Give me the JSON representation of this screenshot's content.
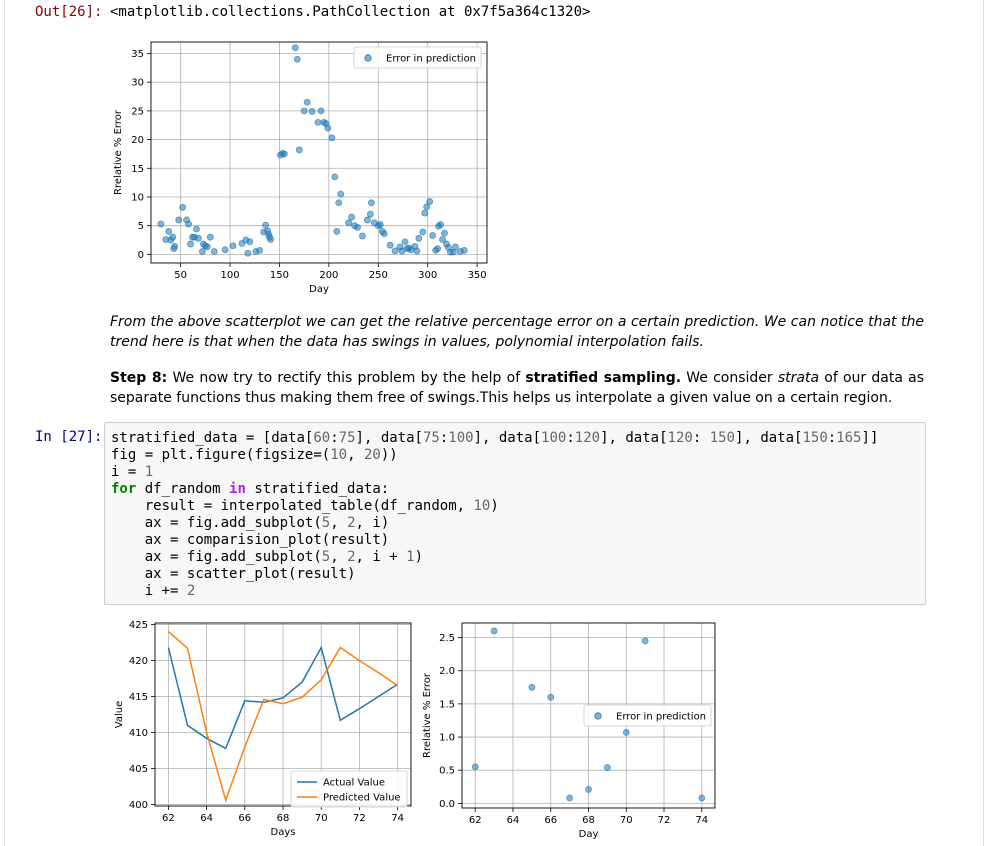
{
  "out_prompt": "Out[26]:",
  "out_text": "<matplotlib.collections.PathCollection at 0x7f5a364c1320>",
  "markdown": {
    "p1": "From the above scatterplot we can get the relative percentage error on a certain prediction. We can notice that the trend here is that when the data has swings in values, polynomial interpolation fails.",
    "step_label": "Step 8:",
    "step_text1": " We now try to rectify this problem by the help of ",
    "step_bold": "stratified sampling.",
    "step_text2": " We consider ",
    "step_italic": "strata",
    "step_text3": " of our data as separate functions thus making them free of swings.This helps us interpolate a given value on a certain region."
  },
  "in_prompt": "In [27]:",
  "code_lines": [
    "stratified_data = [data[60:75], data[75:100], data[100:120], data[120: 150], data[150:165]]",
    "fig = plt.figure(figsize=(10, 20))",
    "i = 1",
    "for df_random in stratified_data:",
    "    result = interpolated_table(df_random, 10)",
    "    ax = fig.add_subplot(5, 2, i)",
    "    ax = comparision_plot(result)",
    "    ax = fig.add_subplot(5, 2, i + 1)",
    "    ax = scatter_plot(result)",
    "    i += 2"
  ],
  "colors": {
    "blue": "#1f77b4",
    "orange": "#ff7f0e"
  },
  "chart_data": [
    {
      "type": "scatter",
      "xlabel": "Day",
      "ylabel": "Rrelative % Error",
      "xlim": [
        20,
        360
      ],
      "ylim": [
        -1.5,
        37
      ],
      "xticks": [
        50,
        100,
        150,
        200,
        250,
        300,
        350
      ],
      "yticks": [
        0,
        5,
        10,
        15,
        20,
        25,
        30,
        35
      ],
      "grid": true,
      "legend": "top-right",
      "series": [
        {
          "name": "Error in prediction",
          "points": [
            [
              30,
              5.3
            ],
            [
              35,
              2.6
            ],
            [
              38,
              4.0
            ],
            [
              40,
              2.5
            ],
            [
              42,
              3.0
            ],
            [
              43,
              1.0
            ],
            [
              44,
              1.4
            ],
            [
              48,
              6.0
            ],
            [
              52,
              8.2
            ],
            [
              56,
              6.0
            ],
            [
              58,
              5.3
            ],
            [
              60,
              1.8
            ],
            [
              62,
              3.0
            ],
            [
              64,
              3.0
            ],
            [
              66,
              4.4
            ],
            [
              68,
              2.8
            ],
            [
              72,
              0.5
            ],
            [
              73,
              1.8
            ],
            [
              75,
              1.5
            ],
            [
              77,
              1.3
            ],
            [
              80,
              3.0
            ],
            [
              84,
              0.5
            ],
            [
              95,
              0.8
            ],
            [
              103,
              1.5
            ],
            [
              112,
              1.9
            ],
            [
              116,
              2.5
            ],
            [
              118,
              0.2
            ],
            [
              120,
              2.2
            ],
            [
              126,
              0.5
            ],
            [
              130,
              0.7
            ],
            [
              134,
              3.9
            ],
            [
              136,
              5.1
            ],
            [
              138,
              4.1
            ],
            [
              139,
              3.5
            ],
            [
              140,
              3.0
            ],
            [
              141,
              2.6
            ],
            [
              151,
              17.3
            ],
            [
              153,
              17.6
            ],
            [
              155,
              17.5
            ],
            [
              166,
              36
            ],
            [
              168,
              34
            ],
            [
              170,
              18.2
            ],
            [
              175,
              25
            ],
            [
              178,
              26.5
            ],
            [
              183,
              24.9
            ],
            [
              189,
              23
            ],
            [
              192,
              25
            ],
            [
              195,
              23
            ],
            [
              197,
              22.8
            ],
            [
              199,
              22
            ],
            [
              203,
              20.3
            ],
            [
              206,
              13.5
            ],
            [
              208,
              4.0
            ],
            [
              210,
              9
            ],
            [
              212,
              10.5
            ],
            [
              220,
              5.5
            ],
            [
              223,
              6.5
            ],
            [
              226,
              5
            ],
            [
              229,
              4.7
            ],
            [
              234,
              3.2
            ],
            [
              239,
              6.0
            ],
            [
              242,
              7.0
            ],
            [
              243,
              9.0
            ],
            [
              246,
              5.5
            ],
            [
              250,
              5.0
            ],
            [
              252,
              5.2
            ],
            [
              254,
              4.0
            ],
            [
              256,
              3.6
            ],
            [
              262,
              1.6
            ],
            [
              267,
              0.6
            ],
            [
              272,
              1.3
            ],
            [
              274,
              0.6
            ],
            [
              277,
              2.2
            ],
            [
              279,
              1.0
            ],
            [
              281,
              1.1
            ],
            [
              283,
              0.8
            ],
            [
              287,
              1.4
            ],
            [
              289,
              0.6
            ],
            [
              291,
              2.8
            ],
            [
              295,
              3.9
            ],
            [
              297,
              7.2
            ],
            [
              299,
              8.3
            ],
            [
              302,
              9.2
            ],
            [
              305,
              3.3
            ],
            [
              308,
              0.7
            ],
            [
              310,
              1.0
            ],
            [
              311,
              4.9
            ],
            [
              313,
              5.2
            ],
            [
              315,
              2.6
            ],
            [
              317,
              3.7
            ],
            [
              319,
              1.8
            ],
            [
              321,
              1.2
            ],
            [
              323,
              0.4
            ],
            [
              326,
              0.4
            ],
            [
              328,
              1.3
            ],
            [
              333,
              0.5
            ],
            [
              337,
              0.7
            ]
          ]
        }
      ]
    },
    {
      "type": "line",
      "xlabel": "Days",
      "ylabel": "Value",
      "xlim": [
        61.3,
        74.7
      ],
      "ylim": [
        399.8,
        425.2
      ],
      "xticks": [
        62,
        64,
        66,
        68,
        70,
        72,
        74
      ],
      "yticks": [
        400,
        405,
        410,
        415,
        420,
        425
      ],
      "grid": true,
      "legend": "bottom-right",
      "x": [
        62,
        63,
        64,
        65,
        66,
        67,
        68,
        69,
        70,
        71,
        72,
        73,
        74
      ],
      "series": [
        {
          "name": "Actual Value",
          "color": "#1f77b4",
          "values": [
            421.8,
            411.0,
            409.2,
            407.8,
            414.4,
            414.2,
            414.8,
            417.0,
            421.8,
            411.7,
            413.3,
            415.0,
            416.7
          ]
        },
        {
          "name": "Predicted Value",
          "color": "#ff7f0e",
          "values": [
            424.0,
            421.7,
            410.0,
            400.6,
            408.0,
            414.6,
            414.0,
            414.9,
            417.3,
            421.8,
            420.0,
            418.3,
            416.5
          ]
        }
      ]
    },
    {
      "type": "scatter",
      "xlabel": "Day",
      "ylabel": "Rrelative % Error",
      "xlim": [
        61.3,
        74.7
      ],
      "ylim": [
        -0.07,
        2.72
      ],
      "xticks": [
        62,
        64,
        66,
        68,
        70,
        72,
        74
      ],
      "yticks": [
        0.0,
        0.5,
        1.0,
        1.5,
        2.0,
        2.5
      ],
      "grid": true,
      "legend": "center-right",
      "series": [
        {
          "name": "Error in prediction",
          "points": [
            [
              62,
              0.55
            ],
            [
              63,
              2.6
            ],
            [
              65,
              1.75
            ],
            [
              66,
              1.6
            ],
            [
              67,
              0.08
            ],
            [
              68,
              0.21
            ],
            [
              69,
              0.54
            ],
            [
              70,
              1.07
            ],
            [
              71,
              2.45
            ],
            [
              74,
              0.08
            ]
          ]
        }
      ]
    }
  ]
}
